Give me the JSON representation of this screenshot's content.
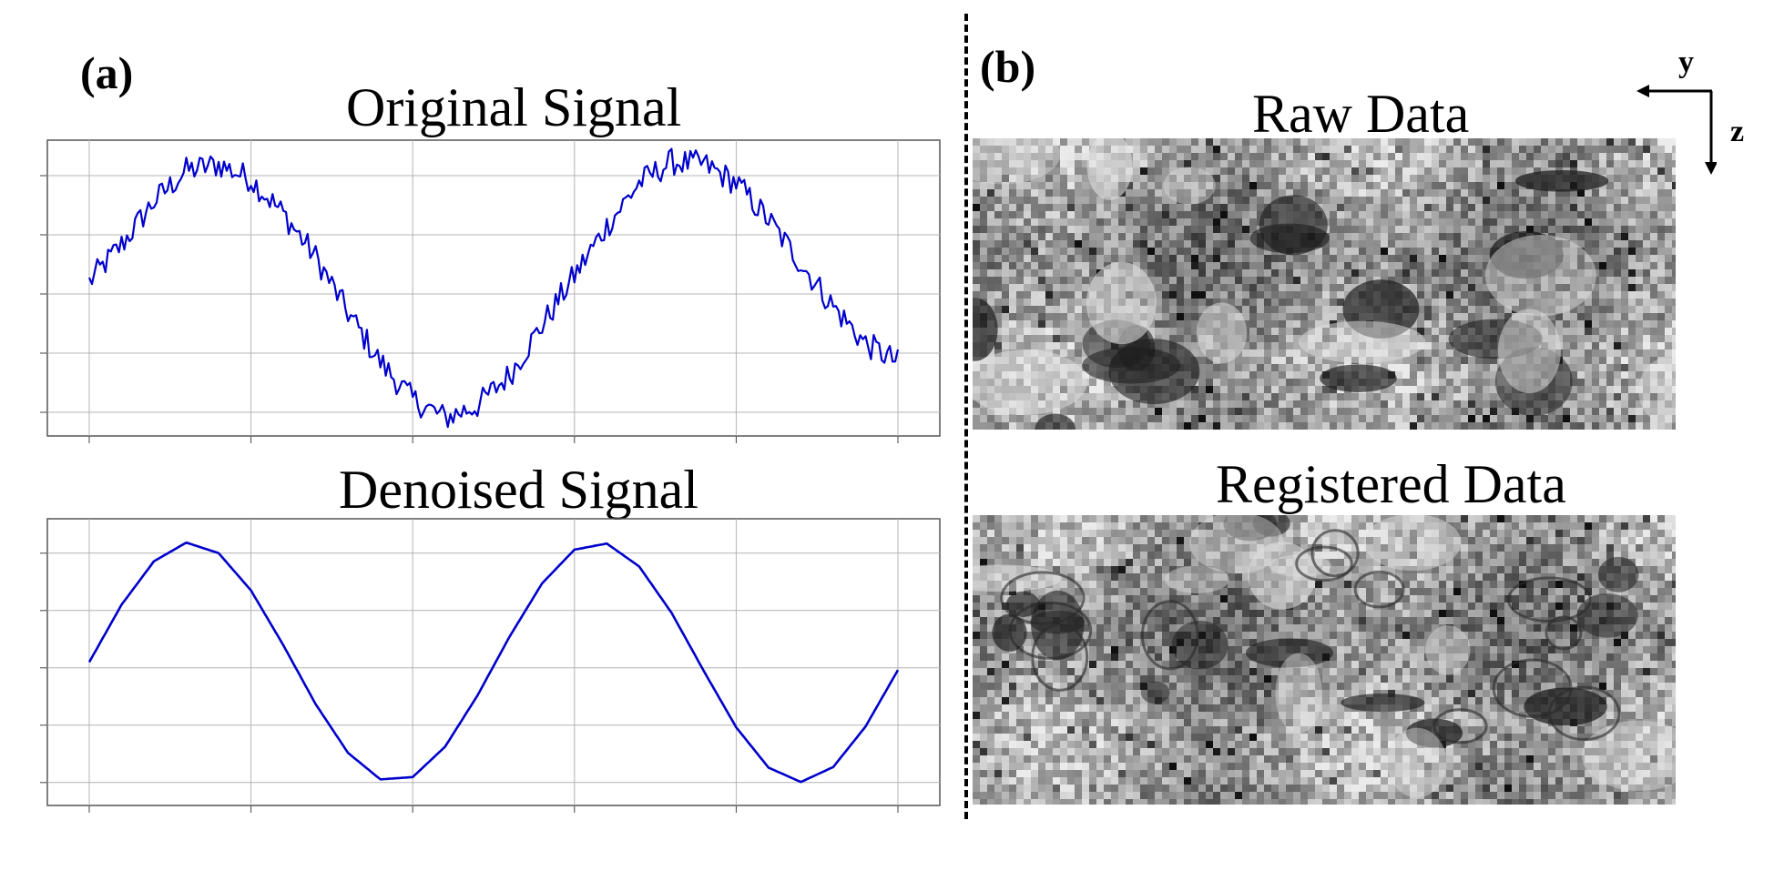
{
  "panel_a": {
    "label": "(a)",
    "top_title": "Original Signal",
    "bottom_title": "Denoised Signal"
  },
  "panel_b": {
    "label": "(b)",
    "top_title": "Raw Data",
    "bottom_title": "Registered Data",
    "axis_y": "y",
    "axis_z": "z"
  },
  "colors": {
    "signal": "#0000cc",
    "grid": "#b4b4b4",
    "frame": "#555555"
  },
  "chart_data": [
    {
      "type": "line",
      "title": "Original Signal",
      "noisy": true,
      "x": [
        0,
        0.5,
        1,
        1.5,
        2,
        2.5,
        3,
        3.5,
        4,
        4.5,
        5,
        5.5,
        6,
        6.5,
        7,
        7.5,
        8,
        8.5,
        9,
        9.5,
        10,
        10.5,
        11,
        11.5,
        12,
        12.5
      ],
      "series": [
        {
          "values": [
            0.05,
            0.35,
            0.7,
            0.95,
            1.0,
            0.88,
            0.6,
            0.25,
            -0.2,
            -0.6,
            -0.9,
            -1.05,
            -0.95,
            -0.7,
            -0.3,
            0.1,
            0.5,
            0.85,
            1.02,
            1.0,
            0.85,
            0.55,
            0.2,
            -0.15,
            -0.45,
            -0.6
          ]
        }
      ],
      "grid": true
    },
    {
      "type": "line",
      "title": "Denoised Signal",
      "noisy": false,
      "x": [
        0,
        0.5,
        1,
        1.5,
        2,
        2.5,
        3,
        3.5,
        4,
        4.5,
        5,
        5.5,
        6,
        6.5,
        7,
        7.5,
        8,
        8.5,
        9,
        9.5,
        10,
        10.5,
        11,
        11.5,
        12,
        12.5
      ],
      "series": [
        {
          "values": [
            0.0,
            0.479,
            0.841,
            0.997,
            0.909,
            0.598,
            0.141,
            -0.351,
            -0.757,
            -0.978,
            -0.959,
            -0.706,
            -0.279,
            0.215,
            0.657,
            0.938,
            0.989,
            0.798,
            0.412,
            -0.075,
            -0.544,
            -0.88,
            -1.0,
            -0.875,
            -0.537,
            -0.066
          ]
        }
      ],
      "grid": true
    }
  ]
}
